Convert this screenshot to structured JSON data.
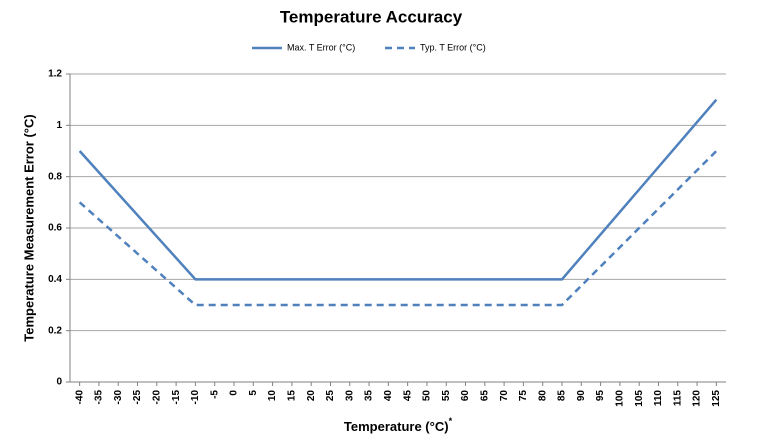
{
  "chart_data": {
    "type": "line",
    "title": "Temperature Accuracy",
    "x_label": "Temperature (°C)",
    "x_label_note": "*",
    "y_label": "Temperature Measurement Error (°C)",
    "x": [
      -40,
      -10,
      85,
      125
    ],
    "series": [
      {
        "name": "Max. T Error (°C)",
        "color": "#4f81bd",
        "dashed": false,
        "values": [
          0.9,
          0.4,
          0.4,
          1.1
        ]
      },
      {
        "name": "Typ. T Error (°C)",
        "color": "#4f81bd",
        "dashed": true,
        "values": [
          0.7,
          0.3,
          0.3,
          0.9
        ]
      }
    ],
    "xlim": [
      -42.5,
      127.5
    ],
    "xticks": [
      -40,
      -35,
      -30,
      -25,
      -20,
      -15,
      -10,
      -5,
      0,
      5,
      10,
      15,
      20,
      25,
      30,
      35,
      40,
      45,
      50,
      55,
      60,
      65,
      70,
      75,
      80,
      85,
      90,
      95,
      100,
      105,
      110,
      115,
      120,
      125
    ],
    "ylim": [
      0,
      1.2
    ],
    "yticks": [
      0,
      0.2,
      0.4,
      0.6,
      0.8,
      1,
      1.2
    ],
    "grid": true,
    "legend": "top"
  }
}
